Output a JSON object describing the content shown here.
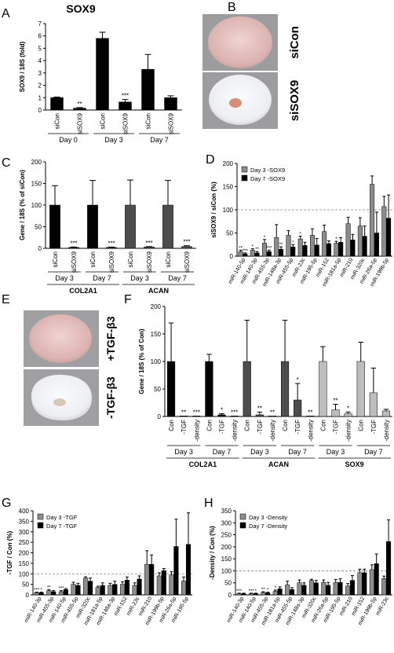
{
  "figure": {
    "panel_letters": [
      "A",
      "B",
      "C",
      "D",
      "E",
      "F",
      "G",
      "H"
    ],
    "colors": {
      "black": "#000000",
      "dark_gray": "#4d4d4d",
      "mid_gray": "#8c8c8c",
      "light_gray": "#bdbdbd",
      "dish_pink": "#e8c7c3",
      "dish_white": "#f2f2f4",
      "dish_bg": "#9a9a9a"
    }
  },
  "panel_b": {
    "top_label": "siCon",
    "bottom_label": "siSOX9"
  },
  "panel_e": {
    "top_label": "+TGF-β3",
    "bottom_label": "-TGF-β3"
  },
  "chart_data": [
    {
      "id": "A",
      "type": "bar",
      "title": "SOX9",
      "ylabel": "SOX9 / 18S (fold)",
      "ylim": [
        0,
        7
      ],
      "yticks": [
        "0",
        "1",
        "2",
        "3",
        "4",
        "5",
        "6",
        "7"
      ],
      "categories": [
        "siCon",
        "siSOX9",
        "siCon",
        "siSOX9",
        "siCon",
        "siSOX9"
      ],
      "values": [
        1.0,
        0.15,
        5.8,
        0.65,
        3.3,
        1.0
      ],
      "errors": [
        0.05,
        0.05,
        0.5,
        0.2,
        1.2,
        0.15
      ],
      "significance": [
        "",
        "**",
        "",
        "***",
        "",
        ""
      ],
      "groups": [
        {
          "label": "Day 0",
          "span": [
            0,
            1
          ]
        },
        {
          "label": "Day 3",
          "span": [
            2,
            3
          ]
        },
        {
          "label": "Day 7",
          "span": [
            4,
            5
          ]
        }
      ]
    },
    {
      "id": "C",
      "type": "bar",
      "ylabel": "Gene / 18S (% of siCon)",
      "ylim": [
        0,
        200
      ],
      "yticks": [
        "0",
        "50",
        "100",
        "150",
        "200"
      ],
      "categories": [
        "siCon",
        "siSOX9",
        "siCon",
        "siSOX9",
        "siCon",
        "siSOX9",
        "siCon",
        "siSOX9"
      ],
      "values": [
        100,
        2,
        100,
        2,
        100,
        3,
        100,
        4
      ],
      "errors": [
        45,
        1,
        57,
        1,
        58,
        1,
        57,
        2
      ],
      "colors": [
        "black",
        "black",
        "black",
        "black",
        "dark_gray",
        "dark_gray",
        "dark_gray",
        "dark_gray"
      ],
      "significance": [
        "",
        "***",
        "",
        "***",
        "",
        "***",
        "",
        "***"
      ],
      "groups": [
        {
          "label": "Day 3",
          "span": [
            0,
            1
          ]
        },
        {
          "label": "Day 7",
          "span": [
            2,
            3
          ]
        },
        {
          "label": "Day 3",
          "span": [
            4,
            5
          ]
        },
        {
          "label": "Day 7",
          "span": [
            6,
            7
          ]
        }
      ],
      "supergroups": [
        {
          "label": "COL2A1",
          "span": [
            0,
            3
          ]
        },
        {
          "label": "ACAN",
          "span": [
            4,
            7
          ]
        }
      ]
    },
    {
      "id": "D",
      "type": "bar",
      "ylabel": "siSOX9 / siCon (%)",
      "ylim": [
        0,
        200
      ],
      "yticks": [
        "0",
        "50",
        "100",
        "150",
        "200"
      ],
      "reference_line": 100,
      "categories": [
        "miR-140-5p",
        "miR-140-3p",
        "miR-455-3p",
        "miR-148a-3p",
        "miR-455-5p",
        "miR-23c",
        "miR-195-5p",
        "miR-152",
        "miR-181a-5p",
        "miR-210",
        "miR-320c",
        "miR-26a-5p",
        "miR-199b-5p"
      ],
      "series": [
        {
          "name": "Day 3 -SOX9",
          "color": "mid_gray",
          "values": [
            10,
            13,
            28,
            40,
            45,
            37,
            45,
            53,
            28,
            70,
            65,
            155,
            107
          ],
          "errors": [
            3,
            3,
            8,
            28,
            10,
            6,
            14,
            14,
            4,
            14,
            18,
            18,
            22
          ]
        },
        {
          "name": "Day 7 -SOX9",
          "color": "black",
          "values": [
            5,
            7,
            10,
            15,
            20,
            23,
            24,
            27,
            30,
            35,
            43,
            50,
            82
          ],
          "errors": [
            2,
            3,
            3,
            5,
            5,
            7,
            14,
            6,
            10,
            12,
            22,
            45,
            50
          ]
        }
      ],
      "significance_day3": [
        "**",
        "*",
        "*",
        "",
        "",
        "*",
        "",
        "",
        "*",
        "",
        "",
        "",
        ""
      ],
      "significance_day7": [
        "***",
        "**",
        "***",
        "**",
        "*",
        "",
        "",
        "",
        "",
        "",
        "",
        "",
        ""
      ],
      "legend_position": "top-left"
    },
    {
      "id": "F",
      "type": "bar",
      "ylabel": "Gene / 18S (% of Con)",
      "ylim": [
        0,
        200
      ],
      "yticks": [
        "0",
        "50",
        "100",
        "150",
        "200"
      ],
      "categories": [
        "Con",
        "-TGF",
        "-density",
        "Con",
        "-TGF",
        "-density",
        "Con",
        "-TGF",
        "-density",
        "Con",
        "-TGF",
        "-density",
        "Con",
        "-TGF",
        "-density",
        "Con",
        "-TGF",
        "-density"
      ],
      "values": [
        100,
        1,
        1,
        100,
        3,
        1,
        100,
        3,
        1,
        100,
        30,
        1,
        100,
        12,
        5,
        100,
        43,
        10
      ],
      "errors": [
        70,
        0,
        0,
        13,
        2,
        0,
        75,
        5,
        0,
        75,
        30,
        0,
        27,
        10,
        3,
        35,
        45,
        3
      ],
      "colors": [
        "black",
        "black",
        "black",
        "black",
        "black",
        "black",
        "dark_gray",
        "dark_gray",
        "dark_gray",
        "dark_gray",
        "dark_gray",
        "dark_gray",
        "light_gray",
        "light_gray",
        "light_gray",
        "light_gray",
        "light_gray",
        "light_gray"
      ],
      "significance": [
        "",
        "**",
        "***",
        "",
        "*",
        "***",
        "",
        "**",
        "**",
        "",
        "*",
        "**",
        "",
        "**",
        "*",
        "",
        "",
        ""
      ],
      "groups": [
        {
          "label": "Day 3",
          "span": [
            0,
            2
          ]
        },
        {
          "label": "Day 7",
          "span": [
            3,
            5
          ]
        },
        {
          "label": "Day 3",
          "span": [
            6,
            8
          ]
        },
        {
          "label": "Day 7",
          "span": [
            9,
            11
          ]
        },
        {
          "label": "Day 3",
          "span": [
            12,
            14
          ]
        },
        {
          "label": "Day 7",
          "span": [
            15,
            17
          ]
        }
      ],
      "supergroups": [
        {
          "label": "COL2A1",
          "span": [
            0,
            5
          ]
        },
        {
          "label": "ACAN",
          "span": [
            6,
            11
          ]
        },
        {
          "label": "SOX9",
          "span": [
            12,
            17
          ]
        }
      ]
    },
    {
      "id": "G",
      "type": "bar",
      "ylabel": "-TGF / Con (%)",
      "ylim": [
        0,
        400
      ],
      "yticks": [
        "0",
        "50",
        "100",
        "150",
        "200",
        "250",
        "300",
        "350",
        "400"
      ],
      "reference_line": 100,
      "categories": [
        "miR-140-3p",
        "miR-455-3p",
        "miR-140-5p",
        "miR-455-5p",
        "miR-320c",
        "miR-181a-5p",
        "miR-148a-3p",
        "miR-152",
        "miR-23c",
        "miR-210",
        "miR-199b-5p",
        "miR-26a-5p",
        "miR-195-5p"
      ],
      "series": [
        {
          "name": "Day 3 -TGF",
          "color": "mid_gray",
          "values": [
            10,
            20,
            15,
            50,
            80,
            35,
            45,
            50,
            45,
            145,
            90,
            95,
            65
          ],
          "errors": [
            3,
            5,
            5,
            10,
            6,
            6,
            10,
            12,
            12,
            65,
            15,
            15,
            20
          ]
        },
        {
          "name": "Day 7 -TGF",
          "color": "black",
          "values": [
            10,
            15,
            25,
            45,
            65,
            45,
            50,
            70,
            75,
            145,
            115,
            230,
            240
          ],
          "errors": [
            3,
            5,
            5,
            10,
            15,
            12,
            15,
            15,
            15,
            45,
            10,
            130,
            150
          ]
        }
      ],
      "significance_day3": [
        "***",
        "**",
        "***",
        "",
        "",
        "",
        "",
        "",
        "",
        "",
        "",
        "",
        ""
      ],
      "significance_day7": [
        "*",
        "",
        "",
        "",
        "",
        "",
        "",
        "",
        "",
        "",
        "",
        "",
        ""
      ],
      "legend_position": "top-left"
    },
    {
      "id": "H",
      "type": "bar",
      "ylabel": "-Density / Con (%)",
      "ylim": [
        0,
        350
      ],
      "yticks": [
        "0",
        "50",
        "100",
        "150",
        "200",
        "250",
        "300",
        "350"
      ],
      "reference_line": 100,
      "categories": [
        "miR-140-3p",
        "miR-140-5p",
        "miR-455-3p",
        "miR-181a-5p",
        "miR-455-5p",
        "miR-148a-3p",
        "miR-320c",
        "miR-26a-5p",
        "miR-195-5p",
        "miR-210",
        "miR-152",
        "miR-199b-5p",
        "miR-23c"
      ],
      "series": [
        {
          "name": "Day 3 -Density",
          "color": "mid_gray",
          "values": [
            5,
            5,
            10,
            15,
            42,
            50,
            60,
            52,
            52,
            37,
            92,
            105,
            68
          ],
          "errors": [
            2,
            2,
            3,
            5,
            15,
            12,
            5,
            10,
            12,
            10,
            15,
            20,
            10
          ]
        },
        {
          "name": "Day 7 -Density",
          "color": "black",
          "values": [
            5,
            5,
            8,
            25,
            22,
            40,
            50,
            40,
            52,
            60,
            92,
            130,
            222
          ],
          "errors": [
            2,
            2,
            3,
            8,
            8,
            10,
            10,
            12,
            15,
            20,
            15,
            40,
            90
          ]
        }
      ],
      "significance_day3": [
        "***",
        "***",
        "**",
        "*",
        "",
        "",
        "",
        "",
        "",
        "",
        "",
        "",
        ""
      ],
      "significance_day7": [
        "",
        "*",
        "*",
        "",
        "",
        "",
        "",
        "",
        "",
        "",
        "",
        "",
        ""
      ],
      "legend_position": "top-left"
    }
  ]
}
